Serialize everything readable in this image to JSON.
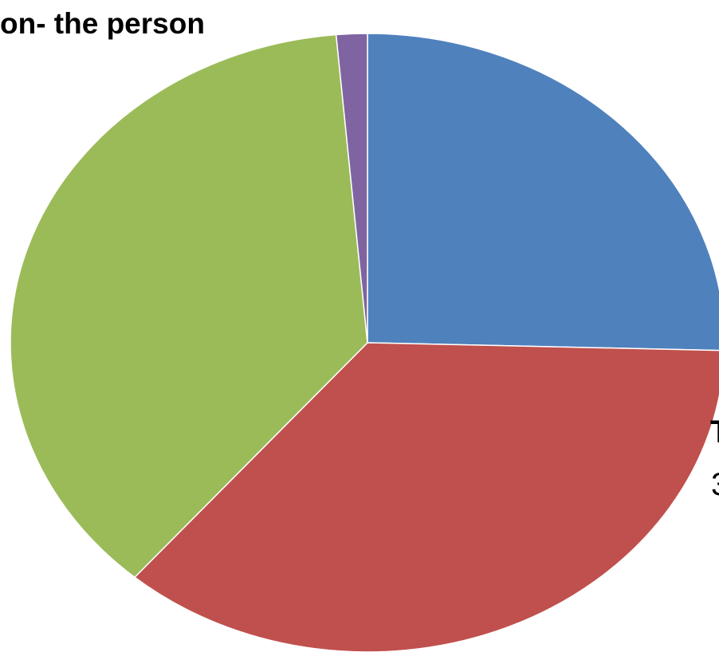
{
  "chart_data": {
    "type": "pie",
    "title": "on- the person",
    "slices": [
      {
        "value": 25.4,
        "color": "#4f81bd"
      },
      {
        "value": 35.9,
        "color": "#c0504d"
      },
      {
        "value": 37.3,
        "color": "#9bbb59"
      },
      {
        "value": 1.4,
        "color": "#8064a2"
      }
    ],
    "start_angle_deg": 0,
    "direction": "clockwise",
    "legend": "none"
  },
  "edge_text": [
    "T",
    "3"
  ]
}
